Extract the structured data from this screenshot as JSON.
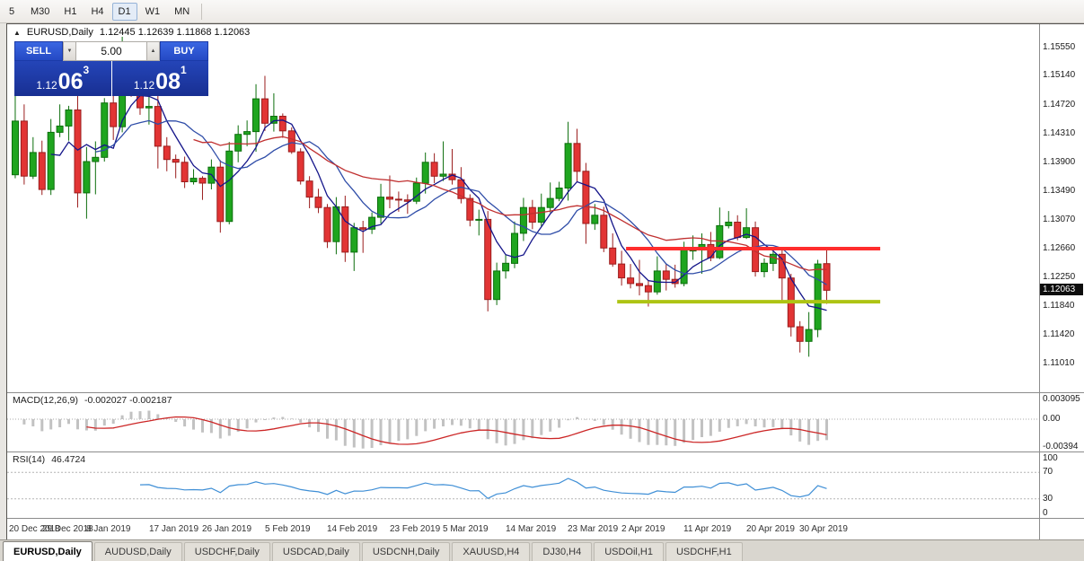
{
  "toolbar": {
    "periods": [
      {
        "label": "5",
        "active": false
      },
      {
        "label": "M30",
        "active": false
      },
      {
        "label": "H1",
        "active": false
      },
      {
        "label": "H4",
        "active": false
      },
      {
        "label": "D1",
        "active": true
      },
      {
        "label": "W1",
        "active": false
      },
      {
        "label": "MN",
        "active": false
      }
    ]
  },
  "chart_header": {
    "collapse_icon": "▲",
    "symbol_label": "EURUSD,Daily",
    "ohlc": "1.12445 1.12639 1.11868 1.12063"
  },
  "one_click": {
    "sell_label": "SELL",
    "buy_label": "BUY",
    "volume": "5.00",
    "spin_down_glyph": "▼",
    "spin_up_glyph": "▲",
    "sell_price": {
      "big_prefix": "1.12",
      "big": "06",
      "sup": "3"
    },
    "buy_price": {
      "big_prefix": "1.12",
      "big": "08",
      "sup": "1"
    }
  },
  "price_axis": {
    "ticks": [
      {
        "label": "1.15550",
        "value": 1.1555
      },
      {
        "label": "1.15140",
        "value": 1.1514
      },
      {
        "label": "1.14720",
        "value": 1.1472
      },
      {
        "label": "1.14310",
        "value": 1.1431
      },
      {
        "label": "1.13900",
        "value": 1.139
      },
      {
        "label": "1.13490",
        "value": 1.1349
      },
      {
        "label": "1.13070",
        "value": 1.1307
      },
      {
        "label": "1.12660",
        "value": 1.1266
      },
      {
        "label": "1.12250",
        "value": 1.1225
      },
      {
        "label": "1.11840",
        "value": 1.1184
      },
      {
        "label": "1.11420",
        "value": 1.1142
      },
      {
        "label": "1.11010",
        "value": 1.1101
      }
    ],
    "current": {
      "label": "1.12063",
      "value": 1.12063
    }
  },
  "macd": {
    "label": "MACD(12,26,9)",
    "values": "-0.002027 -0.002187",
    "ticks": [
      {
        "label": "0.003095",
        "pos": "top"
      },
      {
        "label": "0.00",
        "pos": "zero"
      },
      {
        "label": "-0.00394",
        "pos": "bottom"
      }
    ]
  },
  "rsi": {
    "label": "RSI(14)",
    "value": "46.4724",
    "ticks": [
      {
        "label": "100",
        "value": 100
      },
      {
        "label": "70",
        "value": 70
      },
      {
        "label": "30",
        "value": 30
      },
      {
        "label": "0",
        "value": 0
      }
    ],
    "levels": [
      70,
      30
    ],
    "line_color": "#3f8fd6"
  },
  "tabs": [
    {
      "label": "EURUSD,Daily",
      "active": true
    },
    {
      "label": "AUDUSD,Daily",
      "active": false
    },
    {
      "label": "USDCHF,Daily",
      "active": false
    },
    {
      "label": "USDCAD,Daily",
      "active": false
    },
    {
      "label": "USDCNH,Daily",
      "active": false
    },
    {
      "label": "XAUUSD,H4",
      "active": false
    },
    {
      "label": "DJ30,H4",
      "active": false
    },
    {
      "label": "USDOil,H1",
      "active": false
    },
    {
      "label": "USDCHF,H1",
      "active": false
    }
  ],
  "chart_data": {
    "type": "candlestick",
    "symbol": "EURUSD",
    "timeframe": "Daily",
    "title": "EURUSD,Daily",
    "ylim": [
      1.106,
      1.1588
    ],
    "plot_fraction": 0.795,
    "up_color": "#1fa51f",
    "up_edge": "#0c6e0c",
    "down_color": "#e23434",
    "down_edge": "#9a1d1d",
    "macd_ylim": [
      -0.00394,
      0.003095
    ],
    "macd_bar_color": "#c2c2c2",
    "macd_signal_color": "#cc2626",
    "x_labels": [
      {
        "index": 0,
        "label": "20 Dec 2018"
      },
      {
        "index": 6,
        "label": "29 Dec 2018"
      },
      {
        "index": 11,
        "label": "8 Jan 2019"
      },
      {
        "index": 18,
        "label": "17 Jan 2019"
      },
      {
        "index": 24,
        "label": "26 Jan 2019"
      },
      {
        "index": 31,
        "label": "5 Feb 2019"
      },
      {
        "index": 38,
        "label": "14 Feb 2019"
      },
      {
        "index": 45,
        "label": "23 Feb 2019"
      },
      {
        "index": 51,
        "label": "5 Mar 2019"
      },
      {
        "index": 58,
        "label": "14 Mar 2019"
      },
      {
        "index": 65,
        "label": "23 Mar 2019"
      },
      {
        "index": 71,
        "label": "2 Apr 2019"
      },
      {
        "index": 78,
        "label": "11 Apr 2019"
      },
      {
        "index": 85,
        "label": "20 Apr 2019"
      },
      {
        "index": 91,
        "label": "30 Apr 2019"
      }
    ],
    "candles": [
      [
        1.1372,
        1.1486,
        1.1367,
        1.1449
      ],
      [
        1.1449,
        1.1473,
        1.1358,
        1.137
      ],
      [
        1.137,
        1.1426,
        1.1366,
        1.1404
      ],
      [
        1.1404,
        1.1421,
        1.1343,
        1.1351
      ],
      [
        1.1351,
        1.1452,
        1.1343,
        1.1433
      ],
      [
        1.1433,
        1.1473,
        1.1426,
        1.1442
      ],
      [
        1.1442,
        1.1471,
        1.1421,
        1.1465
      ],
      [
        1.1465,
        1.1497,
        1.1325,
        1.1346
      ],
      [
        1.1346,
        1.1412,
        1.1309,
        1.1391
      ],
      [
        1.1391,
        1.142,
        1.1344,
        1.1397
      ],
      [
        1.1397,
        1.1482,
        1.1391,
        1.1475
      ],
      [
        1.1475,
        1.1485,
        1.1422,
        1.1441
      ],
      [
        1.1441,
        1.157,
        1.1433,
        1.1544
      ],
      [
        1.1544,
        1.1552,
        1.1484,
        1.15
      ],
      [
        1.15,
        1.1541,
        1.1458,
        1.1468
      ],
      [
        1.1468,
        1.1489,
        1.1444,
        1.147
      ],
      [
        1.147,
        1.1491,
        1.1381,
        1.1413
      ],
      [
        1.1413,
        1.1426,
        1.1377,
        1.1394
      ],
      [
        1.1394,
        1.1401,
        1.1367,
        1.139
      ],
      [
        1.139,
        1.1398,
        1.1353,
        1.1362
      ],
      [
        1.1362,
        1.138,
        1.1358,
        1.1367
      ],
      [
        1.1367,
        1.137,
        1.1336,
        1.136
      ],
      [
        1.136,
        1.1394,
        1.1351,
        1.1383
      ],
      [
        1.1383,
        1.1393,
        1.1289,
        1.1305
      ],
      [
        1.1305,
        1.1419,
        1.1301,
        1.1406
      ],
      [
        1.1406,
        1.1443,
        1.139,
        1.143
      ],
      [
        1.143,
        1.145,
        1.1413,
        1.1434
      ],
      [
        1.1434,
        1.1502,
        1.1405,
        1.1481
      ],
      [
        1.1481,
        1.1514,
        1.1435,
        1.1446
      ],
      [
        1.1446,
        1.1489,
        1.1434,
        1.1456
      ],
      [
        1.1456,
        1.146,
        1.1425,
        1.1435
      ],
      [
        1.1435,
        1.144,
        1.1402,
        1.1405
      ],
      [
        1.1405,
        1.141,
        1.1358,
        1.1363
      ],
      [
        1.1363,
        1.137,
        1.1324,
        1.134
      ],
      [
        1.134,
        1.1352,
        1.1317,
        1.1325
      ],
      [
        1.1325,
        1.133,
        1.1267,
        1.1276
      ],
      [
        1.1276,
        1.134,
        1.1258,
        1.1326
      ],
      [
        1.1326,
        1.1342,
        1.1247,
        1.1261
      ],
      [
        1.1261,
        1.1303,
        1.1234,
        1.1296
      ],
      [
        1.1296,
        1.1306,
        1.126,
        1.1294
      ],
      [
        1.1294,
        1.1318,
        1.1287,
        1.1311
      ],
      [
        1.1311,
        1.1359,
        1.1302,
        1.134
      ],
      [
        1.134,
        1.1371,
        1.1324,
        1.1337
      ],
      [
        1.1337,
        1.1348,
        1.1319,
        1.1336
      ],
      [
        1.1336,
        1.1344,
        1.1316,
        1.1334
      ],
      [
        1.1334,
        1.1368,
        1.133,
        1.136
      ],
      [
        1.136,
        1.1404,
        1.1345,
        1.139
      ],
      [
        1.139,
        1.1403,
        1.136,
        1.137
      ],
      [
        1.137,
        1.142,
        1.1363,
        1.1373
      ],
      [
        1.1373,
        1.1409,
        1.1358,
        1.1365
      ],
      [
        1.1365,
        1.1383,
        1.1331,
        1.1338
      ],
      [
        1.1338,
        1.1344,
        1.1298,
        1.1307
      ],
      [
        1.1307,
        1.1322,
        1.1285,
        1.1308
      ],
      [
        1.1308,
        1.132,
        1.1176,
        1.1193
      ],
      [
        1.1193,
        1.1246,
        1.1185,
        1.1234
      ],
      [
        1.1234,
        1.1258,
        1.1223,
        1.1245
      ],
      [
        1.1245,
        1.1305,
        1.1238,
        1.1288
      ],
      [
        1.1288,
        1.1339,
        1.1277,
        1.1325
      ],
      [
        1.1325,
        1.1336,
        1.1294,
        1.1304
      ],
      [
        1.1304,
        1.1345,
        1.1298,
        1.1325
      ],
      [
        1.1325,
        1.1361,
        1.1318,
        1.1338
      ],
      [
        1.1338,
        1.1362,
        1.1334,
        1.1353
      ],
      [
        1.1353,
        1.1448,
        1.1335,
        1.1417
      ],
      [
        1.1417,
        1.1438,
        1.1362,
        1.1377
      ],
      [
        1.1377,
        1.1389,
        1.1273,
        1.1302
      ],
      [
        1.1302,
        1.133,
        1.1293,
        1.1314
      ],
      [
        1.1314,
        1.1326,
        1.1261,
        1.1267
      ],
      [
        1.1267,
        1.1288,
        1.124,
        1.1244
      ],
      [
        1.1244,
        1.1263,
        1.1213,
        1.1224
      ],
      [
        1.1224,
        1.1244,
        1.1209,
        1.1216
      ],
      [
        1.1216,
        1.125,
        1.1199,
        1.1213
      ],
      [
        1.1213,
        1.122,
        1.1183,
        1.1204
      ],
      [
        1.1204,
        1.1255,
        1.12,
        1.1234
      ],
      [
        1.1234,
        1.1244,
        1.1206,
        1.1222
      ],
      [
        1.1222,
        1.1243,
        1.121,
        1.1216
      ],
      [
        1.1216,
        1.1276,
        1.1212,
        1.1264
      ],
      [
        1.1264,
        1.1285,
        1.125,
        1.1264
      ],
      [
        1.1264,
        1.1288,
        1.123,
        1.1272
      ],
      [
        1.1272,
        1.129,
        1.1248,
        1.1253
      ],
      [
        1.1253,
        1.1325,
        1.1251,
        1.1299
      ],
      [
        1.1299,
        1.132,
        1.1295,
        1.1304
      ],
      [
        1.1304,
        1.1314,
        1.1278,
        1.1282
      ],
      [
        1.1282,
        1.1324,
        1.128,
        1.1296
      ],
      [
        1.1296,
        1.1305,
        1.1226,
        1.1233
      ],
      [
        1.1233,
        1.1252,
        1.1225,
        1.1245
      ],
      [
        1.1245,
        1.1262,
        1.1234,
        1.1258
      ],
      [
        1.1258,
        1.1264,
        1.1192,
        1.1224
      ],
      [
        1.1224,
        1.123,
        1.114,
        1.1154
      ],
      [
        1.1154,
        1.1162,
        1.1117,
        1.1133
      ],
      [
        1.1133,
        1.1175,
        1.1111,
        1.115
      ],
      [
        1.115,
        1.125,
        1.1139,
        1.1244
      ],
      [
        1.12445,
        1.12639,
        1.11868,
        1.12063
      ]
    ],
    "overlays": {
      "moving_averages": [
        {
          "period": 5,
          "color": "#14158a"
        },
        {
          "period": 10,
          "color": "#2f4da8"
        },
        {
          "period": 21,
          "color": "#c03030"
        }
      ],
      "hlines": [
        {
          "name": "resistance-line",
          "price": 1.1266,
          "from_bar": 69,
          "to_bar": 97,
          "color": "#ff2d2d",
          "width": 4
        },
        {
          "name": "support-line",
          "price": 1.119,
          "from_bar": 68,
          "to_bar": 97,
          "color": "#aec414",
          "width": 4
        }
      ]
    }
  }
}
